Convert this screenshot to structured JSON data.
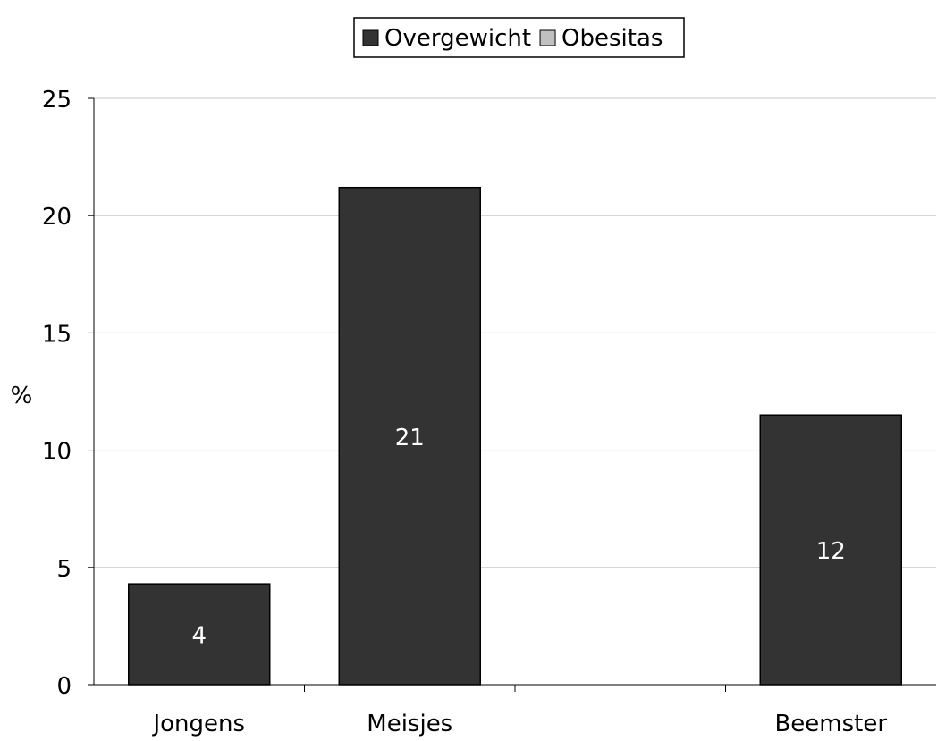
{
  "chart_data": {
    "type": "bar",
    "categories": [
      "Jongens",
      "Meisjes",
      "",
      "Beemster"
    ],
    "series": [
      {
        "name": "Overgewicht",
        "values": [
          4.3,
          21.2,
          null,
          11.5
        ],
        "labels": [
          "4",
          "21",
          "",
          "12"
        ],
        "color": "#333333"
      },
      {
        "name": "Obesitas",
        "values": [
          null,
          null,
          null,
          null
        ],
        "labels": [
          "",
          "",
          "",
          ""
        ],
        "color": "#c0c0c0"
      }
    ],
    "ylabel": "%",
    "xlabel": "",
    "ylim": [
      0,
      25
    ],
    "yticks": [
      0,
      5,
      10,
      15,
      20,
      25
    ],
    "grid": true,
    "legend": "top-center"
  }
}
